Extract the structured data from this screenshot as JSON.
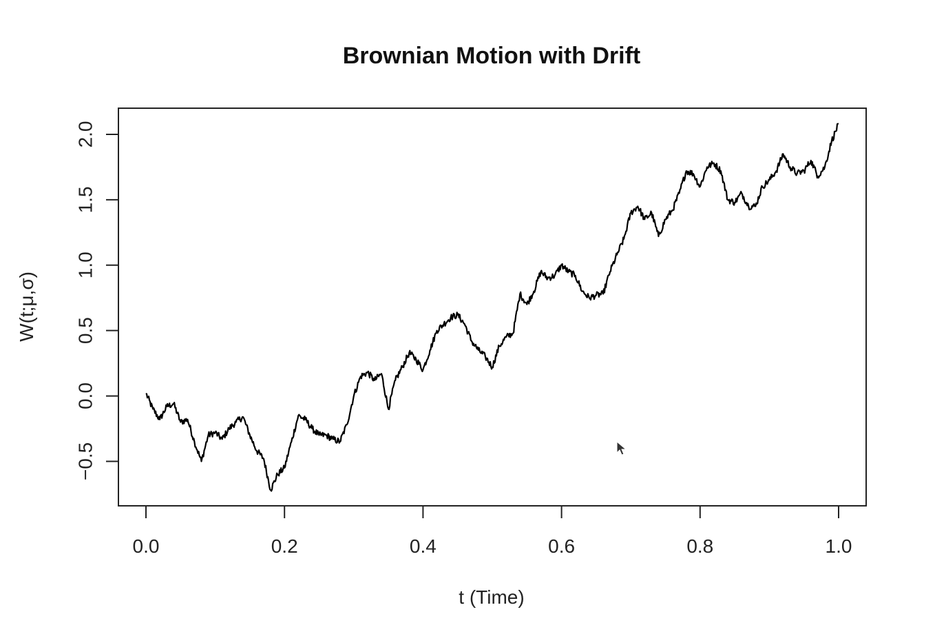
{
  "chart_data": {
    "type": "line",
    "title": "Brownian Motion with Drift",
    "xlabel": "t (Time)",
    "ylabel": "W(t;μ,σ)",
    "xlim": [
      0.0,
      1.0
    ],
    "ylim": [
      -0.84,
      2.2
    ],
    "x_ticks": [
      "0.0",
      "0.2",
      "0.4",
      "0.6",
      "0.8",
      "1.0"
    ],
    "y_ticks": [
      "-0.5",
      "0.0",
      "0.5",
      "1.0",
      "1.5",
      "2.0"
    ],
    "grid": false,
    "series": [
      {
        "color": "#000000",
        "x": [
          0.0,
          0.01,
          0.02,
          0.03,
          0.04,
          0.05,
          0.06,
          0.07,
          0.08,
          0.09,
          0.1,
          0.11,
          0.12,
          0.13,
          0.14,
          0.15,
          0.16,
          0.17,
          0.18,
          0.19,
          0.2,
          0.21,
          0.22,
          0.23,
          0.24,
          0.25,
          0.26,
          0.27,
          0.28,
          0.29,
          0.3,
          0.31,
          0.32,
          0.33,
          0.34,
          0.35,
          0.36,
          0.37,
          0.38,
          0.39,
          0.4,
          0.41,
          0.42,
          0.43,
          0.44,
          0.45,
          0.46,
          0.47,
          0.48,
          0.49,
          0.5,
          0.51,
          0.52,
          0.53,
          0.54,
          0.55,
          0.56,
          0.57,
          0.58,
          0.59,
          0.6,
          0.61,
          0.62,
          0.63,
          0.64,
          0.65,
          0.66,
          0.67,
          0.68,
          0.69,
          0.7,
          0.71,
          0.72,
          0.73,
          0.74,
          0.75,
          0.76,
          0.77,
          0.78,
          0.79,
          0.8,
          0.81,
          0.82,
          0.83,
          0.84,
          0.85,
          0.86,
          0.87,
          0.88,
          0.89,
          0.9,
          0.91,
          0.92,
          0.93,
          0.94,
          0.95,
          0.96,
          0.97,
          0.98,
          0.99,
          1.0
        ],
        "y": [
          0.02,
          -0.1,
          -0.18,
          -0.08,
          -0.06,
          -0.2,
          -0.18,
          -0.35,
          -0.5,
          -0.3,
          -0.28,
          -0.33,
          -0.25,
          -0.2,
          -0.16,
          -0.3,
          -0.42,
          -0.48,
          -0.72,
          -0.6,
          -0.55,
          -0.35,
          -0.15,
          -0.18,
          -0.25,
          -0.3,
          -0.3,
          -0.33,
          -0.35,
          -0.22,
          0.0,
          0.15,
          0.18,
          0.12,
          0.17,
          -0.1,
          0.12,
          0.22,
          0.33,
          0.28,
          0.2,
          0.35,
          0.5,
          0.55,
          0.6,
          0.62,
          0.55,
          0.42,
          0.35,
          0.3,
          0.22,
          0.38,
          0.45,
          0.48,
          0.78,
          0.7,
          0.8,
          0.95,
          0.9,
          0.92,
          1.0,
          0.95,
          0.92,
          0.8,
          0.75,
          0.77,
          0.78,
          0.95,
          1.08,
          1.2,
          1.4,
          1.45,
          1.35,
          1.4,
          1.22,
          1.35,
          1.42,
          1.55,
          1.72,
          1.7,
          1.6,
          1.75,
          1.78,
          1.72,
          1.5,
          1.48,
          1.55,
          1.45,
          1.45,
          1.6,
          1.65,
          1.72,
          1.85,
          1.75,
          1.7,
          1.72,
          1.8,
          1.68,
          1.75,
          1.95,
          2.08
        ]
      }
    ]
  }
}
